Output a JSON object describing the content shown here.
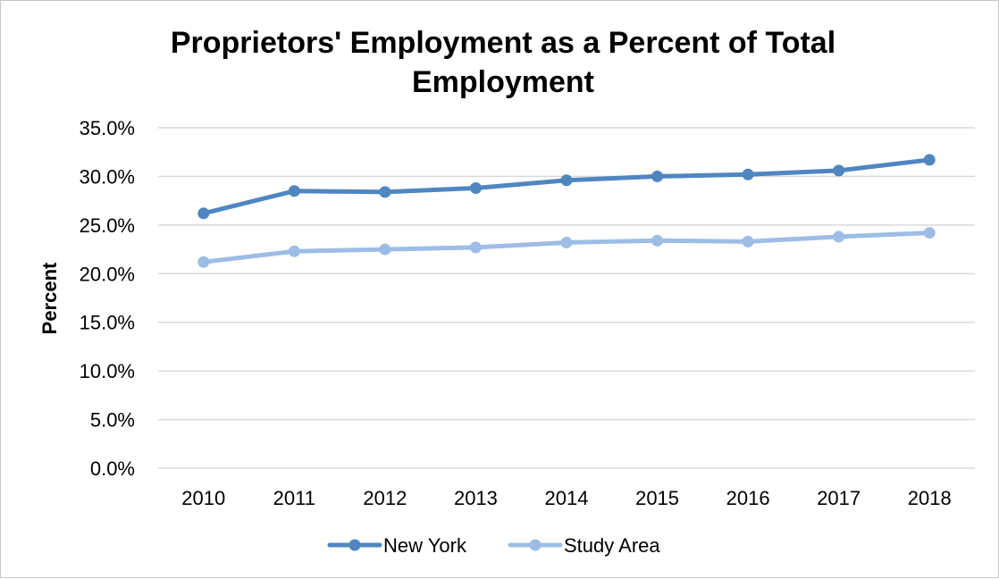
{
  "chart_data": {
    "type": "line",
    "title_line1": "Proprietors' Employment as a Percent of Total",
    "title_line2": "Employment",
    "xlabel": "",
    "ylabel": "Percent",
    "ylim": [
      0,
      35
    ],
    "y_ticks": [
      "0.0%",
      "5.0%",
      "10.0%",
      "15.0%",
      "20.0%",
      "25.0%",
      "30.0%",
      "35.0%"
    ],
    "categories": [
      "2010",
      "2011",
      "2012",
      "2013",
      "2014",
      "2015",
      "2016",
      "2017",
      "2018"
    ],
    "grid": true,
    "legend_position": "bottom",
    "series": [
      {
        "name": "New York",
        "color": "#4f86c0",
        "values": [
          26.2,
          28.5,
          28.4,
          28.8,
          29.6,
          30.0,
          30.2,
          30.6,
          31.7
        ]
      },
      {
        "name": "Study Area",
        "color": "#9dbde6",
        "values": [
          21.2,
          22.3,
          22.5,
          22.7,
          23.2,
          23.4,
          23.3,
          23.8,
          24.2
        ]
      }
    ]
  }
}
